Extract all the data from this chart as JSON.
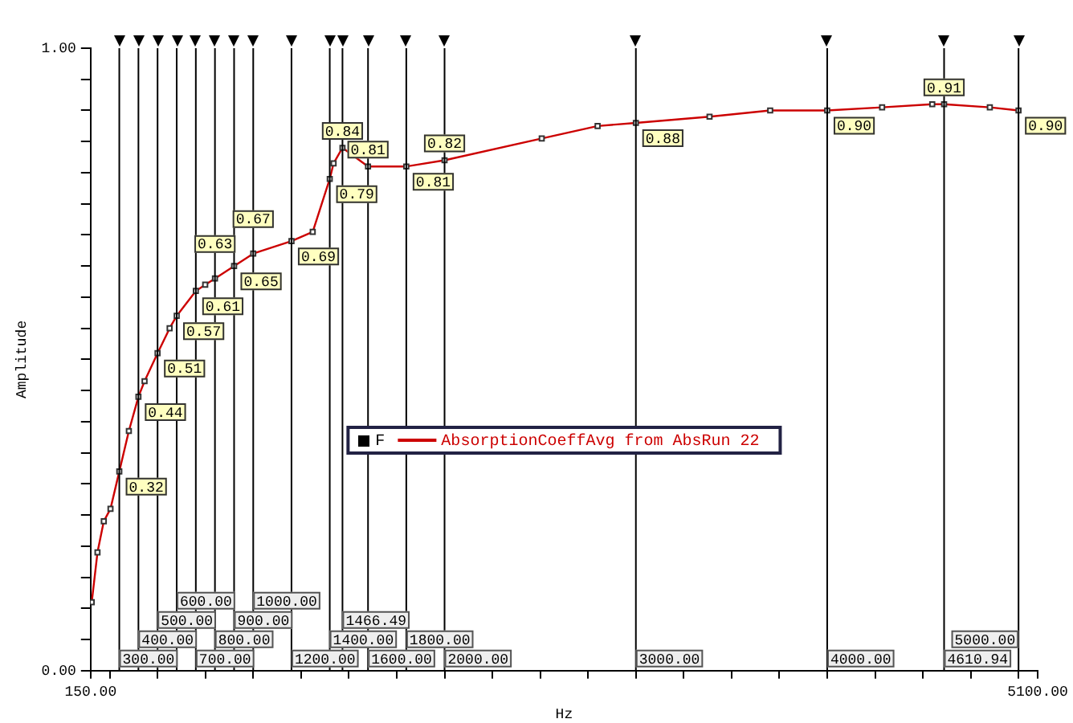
{
  "chart_data": {
    "type": "line",
    "xlabel": "Hz",
    "ylabel": "Amplitude",
    "legend_title": "F",
    "xlim": [
      150,
      5100
    ],
    "ylim": [
      0,
      1
    ],
    "xticks": [
      {
        "value": 150,
        "label": "150.00"
      },
      {
        "value": 250,
        "label": null
      },
      {
        "value": 500,
        "label": null
      },
      {
        "value": 750,
        "label": null
      },
      {
        "value": 1000,
        "label": null
      },
      {
        "value": 1250,
        "label": null
      },
      {
        "value": 1500,
        "label": null
      },
      {
        "value": 1750,
        "label": null
      },
      {
        "value": 2000,
        "label": null
      },
      {
        "value": 2250,
        "label": null
      },
      {
        "value": 2500,
        "label": null
      },
      {
        "value": 2750,
        "label": null
      },
      {
        "value": 3000,
        "label": null
      },
      {
        "value": 3250,
        "label": null
      },
      {
        "value": 3500,
        "label": null
      },
      {
        "value": 3750,
        "label": null
      },
      {
        "value": 4000,
        "label": null
      },
      {
        "value": 4250,
        "label": null
      },
      {
        "value": 4500,
        "label": null
      },
      {
        "value": 4750,
        "label": null
      },
      {
        "value": 5000,
        "label": null
      },
      {
        "value": 5100,
        "label": "5100.00"
      }
    ],
    "yticks": [
      {
        "value": 0,
        "label": "0.00"
      },
      {
        "value": 0.05,
        "label": null
      },
      {
        "value": 0.1,
        "label": null
      },
      {
        "value": 0.15,
        "label": null
      },
      {
        "value": 0.2,
        "label": null
      },
      {
        "value": 0.25,
        "label": null
      },
      {
        "value": 0.3,
        "label": null
      },
      {
        "value": 0.35,
        "label": null
      },
      {
        "value": 0.4,
        "label": null
      },
      {
        "value": 0.45,
        "label": null
      },
      {
        "value": 0.5,
        "label": null
      },
      {
        "value": 0.55,
        "label": null
      },
      {
        "value": 0.6,
        "label": null
      },
      {
        "value": 0.65,
        "label": null
      },
      {
        "value": 0.7,
        "label": null
      },
      {
        "value": 0.75,
        "label": null
      },
      {
        "value": 0.8,
        "label": null
      },
      {
        "value": 0.85,
        "label": null
      },
      {
        "value": 0.9,
        "label": null
      },
      {
        "value": 0.95,
        "label": null
      },
      {
        "value": 1,
        "label": "1.00"
      }
    ],
    "grid": false,
    "legend": "center",
    "marker": "square",
    "line_style": "solid",
    "series": [
      {
        "name": "AbsorptionCoeffAvg from AbsRun 22",
        "color": "#cc0000",
        "x": [
          156,
          186,
          219,
          254,
          300,
          350,
          400,
          432,
          500,
          563,
          600,
          700,
          749,
          800,
          900,
          1000,
          1200,
          1311,
          1400,
          1420,
          1466.49,
          1600,
          1800,
          2000,
          2508,
          2800,
          3000,
          3385,
          3702,
          4000,
          4287,
          4549,
          4610.94,
          4850,
          5000
        ],
        "values": [
          0.11,
          0.19,
          0.24,
          0.26,
          0.32,
          0.385,
          0.44,
          0.465,
          0.51,
          0.55,
          0.57,
          0.61,
          0.62,
          0.63,
          0.65,
          0.67,
          0.69,
          0.705,
          0.79,
          0.815,
          0.84,
          0.81,
          0.81,
          0.82,
          0.855,
          0.875,
          0.88,
          0.89,
          0.9,
          0.9,
          0.905,
          0.91,
          0.91,
          0.905,
          0.9
        ],
        "value_labels": [
          null,
          null,
          null,
          null,
          "0.32",
          null,
          "0.44",
          null,
          "0.51",
          null,
          "0.57",
          "0.61",
          null,
          "0.63",
          "0.65",
          "0.67",
          "0.69",
          null,
          "0.79",
          null,
          "0.84",
          "0.81",
          "0.81",
          "0.82",
          null,
          null,
          "0.88",
          null,
          null,
          "0.90",
          null,
          null,
          "0.91",
          null,
          "0.90"
        ]
      }
    ],
    "ref_lines": [
      {
        "axis": "x",
        "value": 300,
        "label": "300.00"
      },
      {
        "axis": "x",
        "value": 400,
        "label": "400.00"
      },
      {
        "axis": "x",
        "value": 500,
        "label": "500.00"
      },
      {
        "axis": "x",
        "value": 600,
        "label": "600.00"
      },
      {
        "axis": "x",
        "value": 700,
        "label": "700.00"
      },
      {
        "axis": "x",
        "value": 800,
        "label": "800.00"
      },
      {
        "axis": "x",
        "value": 900,
        "label": "900.00"
      },
      {
        "axis": "x",
        "value": 1000,
        "label": "1000.00"
      },
      {
        "axis": "x",
        "value": 1200,
        "label": "1200.00"
      },
      {
        "axis": "x",
        "value": 1400,
        "label": "1400.00"
      },
      {
        "axis": "x",
        "value": 1466.49,
        "label": "1466.49"
      },
      {
        "axis": "x",
        "value": 1600,
        "label": "1600.00"
      },
      {
        "axis": "x",
        "value": 1800,
        "label": "1800.00"
      },
      {
        "axis": "x",
        "value": 2000,
        "label": "2000.00"
      },
      {
        "axis": "x",
        "value": 3000,
        "label": "3000.00"
      },
      {
        "axis": "x",
        "value": 4000,
        "label": "4000.00"
      },
      {
        "axis": "x",
        "value": 4610.94,
        "label": "4610.94"
      },
      {
        "axis": "x",
        "value": 5000,
        "label": "5000.00"
      }
    ]
  }
}
